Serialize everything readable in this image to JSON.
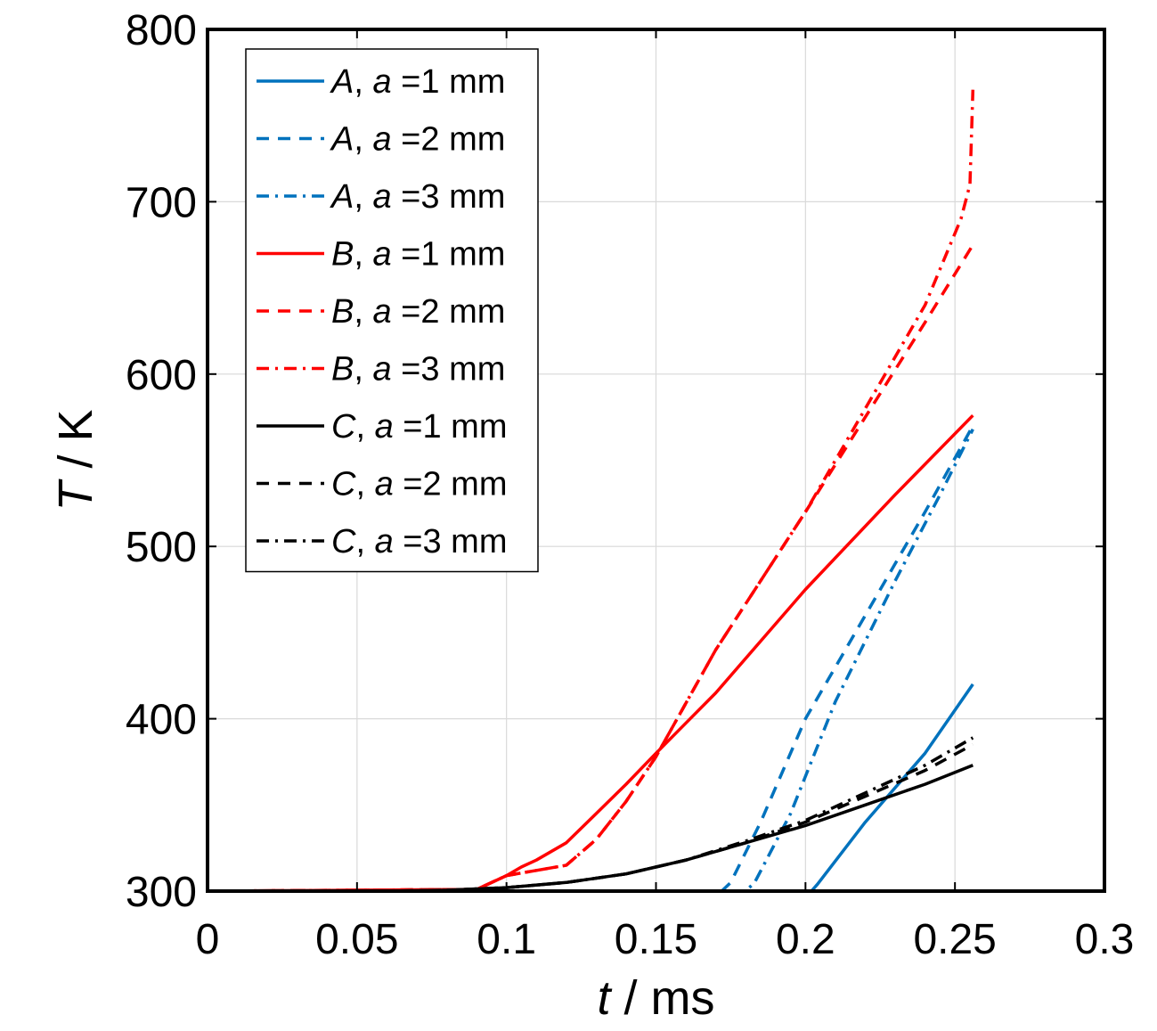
{
  "chart_data": {
    "type": "line",
    "title": "",
    "xlabel": {
      "var": "t",
      "unit": " / ms"
    },
    "ylabel": {
      "var": "T",
      "unit": " / K"
    },
    "xlim": [
      0,
      0.3
    ],
    "ylim": [
      300,
      800
    ],
    "xticks": [
      0,
      0.05,
      0.1,
      0.15,
      0.2,
      0.25,
      0.3
    ],
    "xtick_labels": [
      "0",
      "0.05",
      "0.1",
      "0.15",
      "0.2",
      "0.25",
      "0.3"
    ],
    "yticks": [
      300,
      400,
      500,
      600,
      700,
      800
    ],
    "ytick_labels": [
      "300",
      "400",
      "500",
      "600",
      "700",
      "800"
    ],
    "grid": true,
    "legend_position": "top-left",
    "colors": {
      "A": "#0072BD",
      "B": "#FF0000",
      "C": "#000000"
    },
    "series": [
      {
        "name": "A, a =1 mm",
        "label_var": "A",
        "label_mid": "a",
        "label_val": " =1 mm",
        "color": "#0072BD",
        "dash": "solid",
        "points": [
          [
            0.0,
            300
          ],
          [
            0.2,
            300
          ],
          [
            0.202,
            300
          ],
          [
            0.204,
            304
          ],
          [
            0.22,
            340
          ],
          [
            0.24,
            380
          ],
          [
            0.256,
            420
          ]
        ]
      },
      {
        "name": "A, a =2 mm",
        "label_var": "A",
        "label_mid": "a",
        "label_val": " =2 mm",
        "color": "#0072BD",
        "dash": "dash",
        "points": [
          [
            0.0,
            300
          ],
          [
            0.172,
            300
          ],
          [
            0.175,
            305
          ],
          [
            0.185,
            340
          ],
          [
            0.2,
            400
          ],
          [
            0.22,
            460
          ],
          [
            0.24,
            520
          ],
          [
            0.256,
            570
          ]
        ]
      },
      {
        "name": "A, a =3 mm",
        "label_var": "A",
        "label_mid": "a",
        "label_val": " =3 mm",
        "color": "#0072BD",
        "dash": "dashdot",
        "points": [
          [
            0.0,
            300
          ],
          [
            0.18,
            300
          ],
          [
            0.183,
            305
          ],
          [
            0.195,
            345
          ],
          [
            0.21,
            410
          ],
          [
            0.23,
            480
          ],
          [
            0.245,
            530
          ],
          [
            0.256,
            568
          ]
        ]
      },
      {
        "name": "B, a =1 mm",
        "label_var": "B",
        "label_mid": "a",
        "label_val": " =1 mm",
        "color": "#FF0000",
        "dash": "solid",
        "points": [
          [
            0.0,
            300
          ],
          [
            0.09,
            301
          ],
          [
            0.1,
            309
          ],
          [
            0.105,
            314
          ],
          [
            0.11,
            318
          ],
          [
            0.12,
            328
          ],
          [
            0.13,
            345
          ],
          [
            0.14,
            362
          ],
          [
            0.15,
            380
          ],
          [
            0.17,
            415
          ],
          [
            0.2,
            475
          ],
          [
            0.23,
            530
          ],
          [
            0.256,
            576
          ]
        ]
      },
      {
        "name": "B, a =2 mm",
        "label_var": "B",
        "label_mid": "a",
        "label_val": " =2 mm",
        "color": "#FF0000",
        "dash": "dash",
        "points": [
          [
            0.0,
            300
          ],
          [
            0.09,
            301
          ],
          [
            0.1,
            309
          ],
          [
            0.11,
            312
          ],
          [
            0.12,
            315
          ],
          [
            0.13,
            330
          ],
          [
            0.14,
            352
          ],
          [
            0.15,
            378
          ],
          [
            0.17,
            440
          ],
          [
            0.2,
            520
          ],
          [
            0.22,
            575
          ],
          [
            0.24,
            630
          ],
          [
            0.256,
            675
          ]
        ]
      },
      {
        "name": "B, a =3 mm",
        "label_var": "B",
        "label_mid": "a",
        "label_val": " =3 mm",
        "color": "#FF0000",
        "dash": "dashdot",
        "points": [
          [
            0.0,
            300
          ],
          [
            0.09,
            301
          ],
          [
            0.1,
            309
          ],
          [
            0.11,
            312
          ],
          [
            0.12,
            315
          ],
          [
            0.13,
            330
          ],
          [
            0.14,
            352
          ],
          [
            0.15,
            378
          ],
          [
            0.17,
            440
          ],
          [
            0.2,
            520
          ],
          [
            0.22,
            580
          ],
          [
            0.24,
            640
          ],
          [
            0.252,
            690
          ],
          [
            0.255,
            710
          ],
          [
            0.256,
            765
          ]
        ]
      },
      {
        "name": "C, a =1 mm",
        "label_var": "C",
        "label_mid": "a",
        "label_val": " =1 mm",
        "color": "#000000",
        "dash": "solid",
        "points": [
          [
            0.0,
            300
          ],
          [
            0.06,
            300
          ],
          [
            0.08,
            300.5
          ],
          [
            0.1,
            302
          ],
          [
            0.12,
            305
          ],
          [
            0.14,
            310
          ],
          [
            0.16,
            318
          ],
          [
            0.18,
            328
          ],
          [
            0.2,
            338
          ],
          [
            0.22,
            350
          ],
          [
            0.24,
            362
          ],
          [
            0.256,
            373
          ]
        ]
      },
      {
        "name": "C, a =2 mm",
        "label_var": "C",
        "label_mid": "a",
        "label_val": " =2 mm",
        "color": "#000000",
        "dash": "dash",
        "points": [
          [
            0.0,
            300
          ],
          [
            0.06,
            300
          ],
          [
            0.08,
            300.5
          ],
          [
            0.1,
            302
          ],
          [
            0.12,
            305
          ],
          [
            0.14,
            310
          ],
          [
            0.16,
            318
          ],
          [
            0.18,
            328
          ],
          [
            0.2,
            340
          ],
          [
            0.22,
            355
          ],
          [
            0.24,
            370
          ],
          [
            0.256,
            385
          ]
        ]
      },
      {
        "name": "C, a =3 mm",
        "label_var": "C",
        "label_mid": "a",
        "label_val": " =3 mm",
        "color": "#000000",
        "dash": "dashdot",
        "points": [
          [
            0.0,
            300
          ],
          [
            0.06,
            300
          ],
          [
            0.08,
            300.5
          ],
          [
            0.1,
            302
          ],
          [
            0.12,
            305
          ],
          [
            0.14,
            310
          ],
          [
            0.16,
            318
          ],
          [
            0.18,
            329
          ],
          [
            0.2,
            341
          ],
          [
            0.22,
            357
          ],
          [
            0.24,
            373
          ],
          [
            0.256,
            389
          ]
        ]
      }
    ]
  }
}
